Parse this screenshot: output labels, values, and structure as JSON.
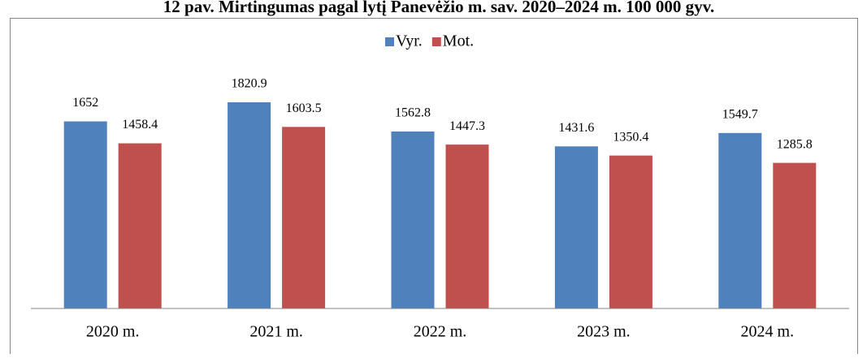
{
  "chart_data": {
    "type": "bar",
    "title": "12 pav. Mirtingumas pagal lytį Panevėžio m. sav. 2020–2024 m. 100 000 gyv.",
    "categories": [
      "2020 m.",
      "2021 m.",
      "2022 m.",
      "2023 m.",
      "2024 m."
    ],
    "series": [
      {
        "name": "Vyr.",
        "color": "#4f81bd",
        "values": [
          1652,
          1820.9,
          1562.8,
          1431.6,
          1549.7
        ]
      },
      {
        "name": "Mot.",
        "color": "#c0504d",
        "values": [
          1458.4,
          1603.5,
          1447.3,
          1350.4,
          1285.8
        ]
      }
    ],
    "ylim": [
      0,
      2000
    ],
    "legend": "top"
  }
}
